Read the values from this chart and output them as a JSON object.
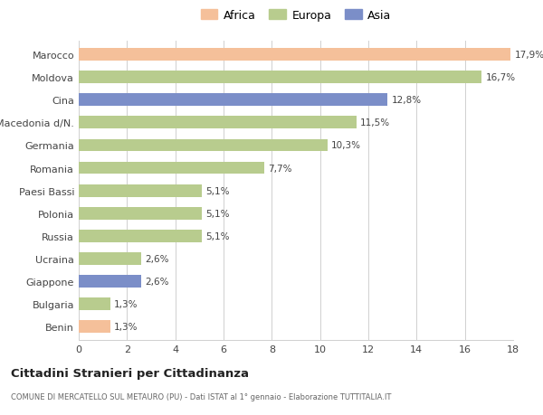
{
  "categories": [
    "Marocco",
    "Moldova",
    "Cina",
    "Macedonia d/N.",
    "Germania",
    "Romania",
    "Paesi Bassi",
    "Polonia",
    "Russia",
    "Ucraina",
    "Giappone",
    "Bulgaria",
    "Benin"
  ],
  "values": [
    17.9,
    16.7,
    12.8,
    11.5,
    10.3,
    7.7,
    5.1,
    5.1,
    5.1,
    2.6,
    2.6,
    1.3,
    1.3
  ],
  "labels": [
    "17,9%",
    "16,7%",
    "12,8%",
    "11,5%",
    "10,3%",
    "7,7%",
    "5,1%",
    "5,1%",
    "5,1%",
    "2,6%",
    "2,6%",
    "1,3%",
    "1,3%"
  ],
  "colors": [
    "#F5C09A",
    "#B8CC8E",
    "#7B8EC8",
    "#B8CC8E",
    "#B8CC8E",
    "#B8CC8E",
    "#B8CC8E",
    "#B8CC8E",
    "#B8CC8E",
    "#B8CC8E",
    "#7B8EC8",
    "#B8CC8E",
    "#F5C09A"
  ],
  "legend_labels": [
    "Africa",
    "Europa",
    "Asia"
  ],
  "legend_colors": [
    "#F5C09A",
    "#B8CC8E",
    "#7B8EC8"
  ],
  "title": "Cittadini Stranieri per Cittadinanza",
  "subtitle": "COMUNE DI MERCATELLO SUL METAURO (PU) - Dati ISTAT al 1° gennaio - Elaborazione TUTTITALIA.IT",
  "xlim": [
    0,
    18
  ],
  "xticks": [
    0,
    2,
    4,
    6,
    8,
    10,
    12,
    14,
    16,
    18
  ],
  "bg_color": "#ffffff",
  "grid_color": "#d0d0d0",
  "bar_height": 0.55
}
